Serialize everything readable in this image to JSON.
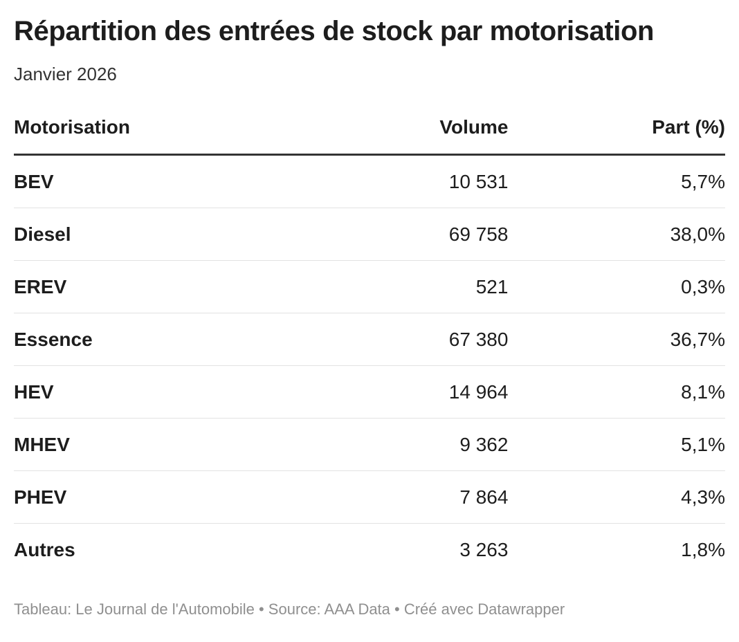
{
  "page": {
    "title": "Répartition des entrées de stock par motorisation",
    "subtitle": "Janvier 2026",
    "footer": "Tableau: Le Journal de l'Automobile • Source: AAA Data • Créé avec Datawrapper"
  },
  "table": {
    "columns": [
      {
        "label": "Motorisation"
      },
      {
        "label": "Volume"
      },
      {
        "label": "Part (%)"
      }
    ],
    "rows": [
      {
        "motorisation": "BEV",
        "volume": "10 531",
        "part": "5,7%"
      },
      {
        "motorisation": "Diesel",
        "volume": "69 758",
        "part": "38,0%"
      },
      {
        "motorisation": "EREV",
        "volume": "521",
        "part": "0,3%"
      },
      {
        "motorisation": "Essence",
        "volume": "67 380",
        "part": "36,7%"
      },
      {
        "motorisation": "HEV",
        "volume": "14 964",
        "part": "8,1%"
      },
      {
        "motorisation": "MHEV",
        "volume": "9 362",
        "part": "5,1%"
      },
      {
        "motorisation": "PHEV",
        "volume": "7 864",
        "part": "4,3%"
      },
      {
        "motorisation": "Autres",
        "volume": "3 263",
        "part": "1,8%"
      }
    ]
  },
  "chart_data": {
    "type": "table",
    "title": "Répartition des entrées de stock par motorisation",
    "subtitle": "Janvier 2026",
    "columns": [
      "Motorisation",
      "Volume",
      "Part (%)"
    ],
    "rows": [
      [
        "BEV",
        10531,
        5.7
      ],
      [
        "Diesel",
        69758,
        38.0
      ],
      [
        "EREV",
        521,
        0.3
      ],
      [
        "Essence",
        67380,
        36.7
      ],
      [
        "HEV",
        14964,
        8.1
      ],
      [
        "MHEV",
        9362,
        5.1
      ],
      [
        "PHEV",
        7864,
        4.3
      ],
      [
        "Autres",
        3263,
        1.8
      ]
    ],
    "notes": "Volumes in units, shares in percent; French number formatting with space thousands separator and comma decimals"
  },
  "colors": {
    "background": "#ffffff",
    "text": "#1d1d1d",
    "subtitle_text": "#333333",
    "footer_text": "#8f8f8f",
    "header_rule": "#333333",
    "row_rule": "#e2e2e2"
  }
}
